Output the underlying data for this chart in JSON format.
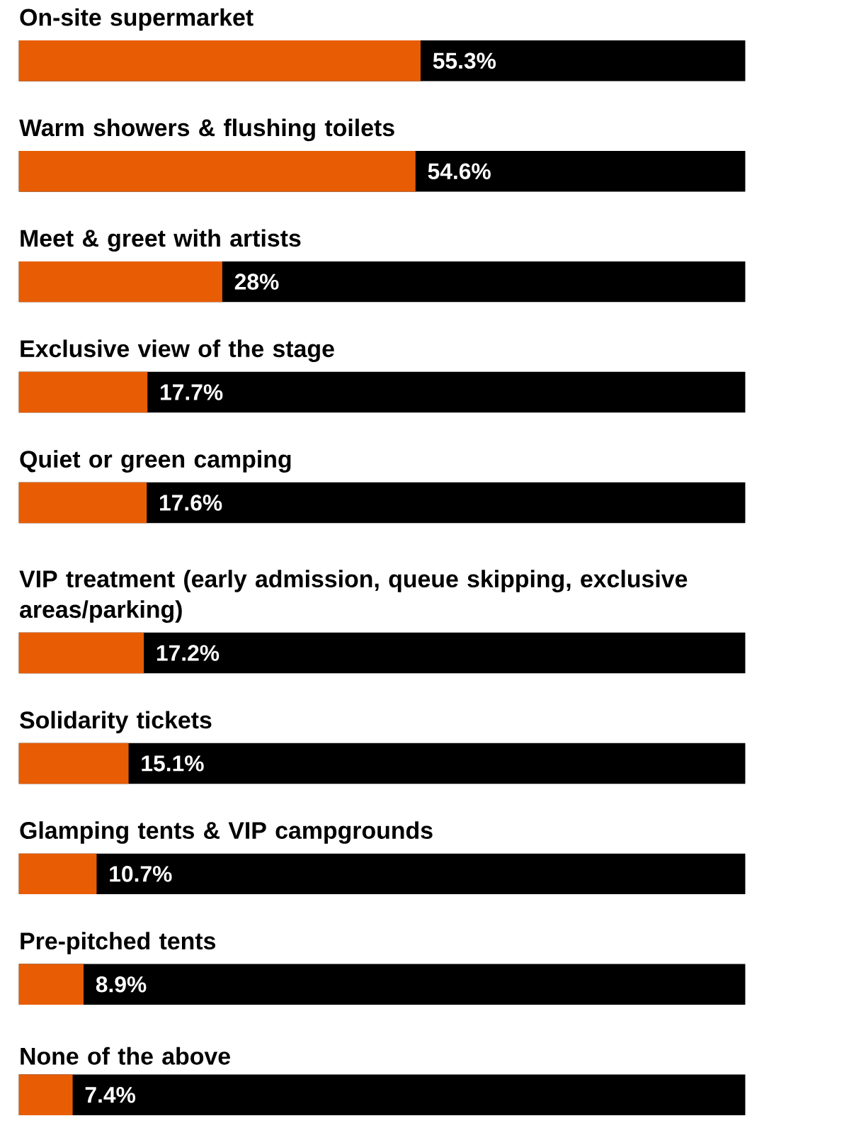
{
  "chart_data": {
    "type": "bar",
    "orientation": "horizontal",
    "categories": [
      "On-site supermarket",
      "Warm showers & flushing toilets",
      "Meet & greet with artists",
      "Exclusive view of the stage",
      "Quiet or green camping",
      "VIP treatment (early admission, queue skipping, exclusive areas/parking)",
      "Solidarity tickets",
      "Glamping tents & VIP campgrounds",
      "Pre-pitched tents",
      "None of the above"
    ],
    "xlim": [
      0,
      100
    ],
    "series": [
      {
        "color": "#e85d04",
        "values": [
          55.3,
          54.6,
          28,
          17.7,
          17.6,
          17.2,
          15.1,
          10.7,
          8.9,
          7.4
        ],
        "value_labels": [
          "55.3%",
          "54.6%",
          "28%",
          "17.7%",
          "17.6%",
          "17.2%",
          "15.1%",
          "10.7%",
          "8.9%",
          "7.4%"
        ]
      }
    ]
  }
}
